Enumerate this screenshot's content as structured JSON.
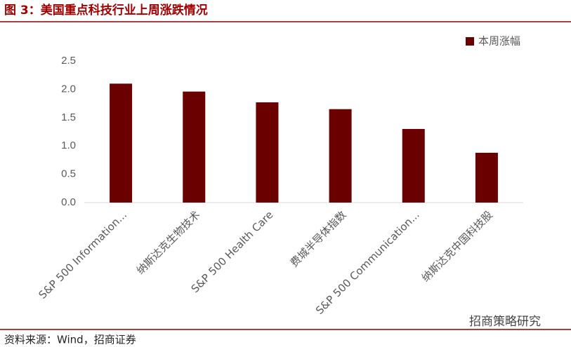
{
  "chart_data": {
    "type": "bar",
    "title": "图 3：美国重点科技行业上周涨跌情况",
    "source": "资料来源：Wind，招商证券",
    "watermark": "招商策略研究",
    "categories": [
      "S&P 500 Information...",
      "纳斯达克生物技术",
      "S&P 500 Health Care",
      "费城半导体指数",
      "S&P 500 Communication...",
      "纳斯达克中国科技股"
    ],
    "series": [
      {
        "name": "本周涨幅",
        "color": "#6b0000",
        "values": [
          2.1,
          1.96,
          1.77,
          1.65,
          1.3,
          0.88
        ]
      }
    ],
    "ylim": [
      0,
      2.5
    ],
    "yticks": [
      {
        "value": 0,
        "label": "0.0"
      },
      {
        "value": 0.5,
        "label": "0.5"
      },
      {
        "value": 1,
        "label": "1.0"
      },
      {
        "value": 1.5,
        "label": "1.5"
      },
      {
        "value": 2,
        "label": "2.0"
      },
      {
        "value": 2.5,
        "label": "2.5"
      }
    ],
    "grid": false,
    "legend": "top-right"
  }
}
